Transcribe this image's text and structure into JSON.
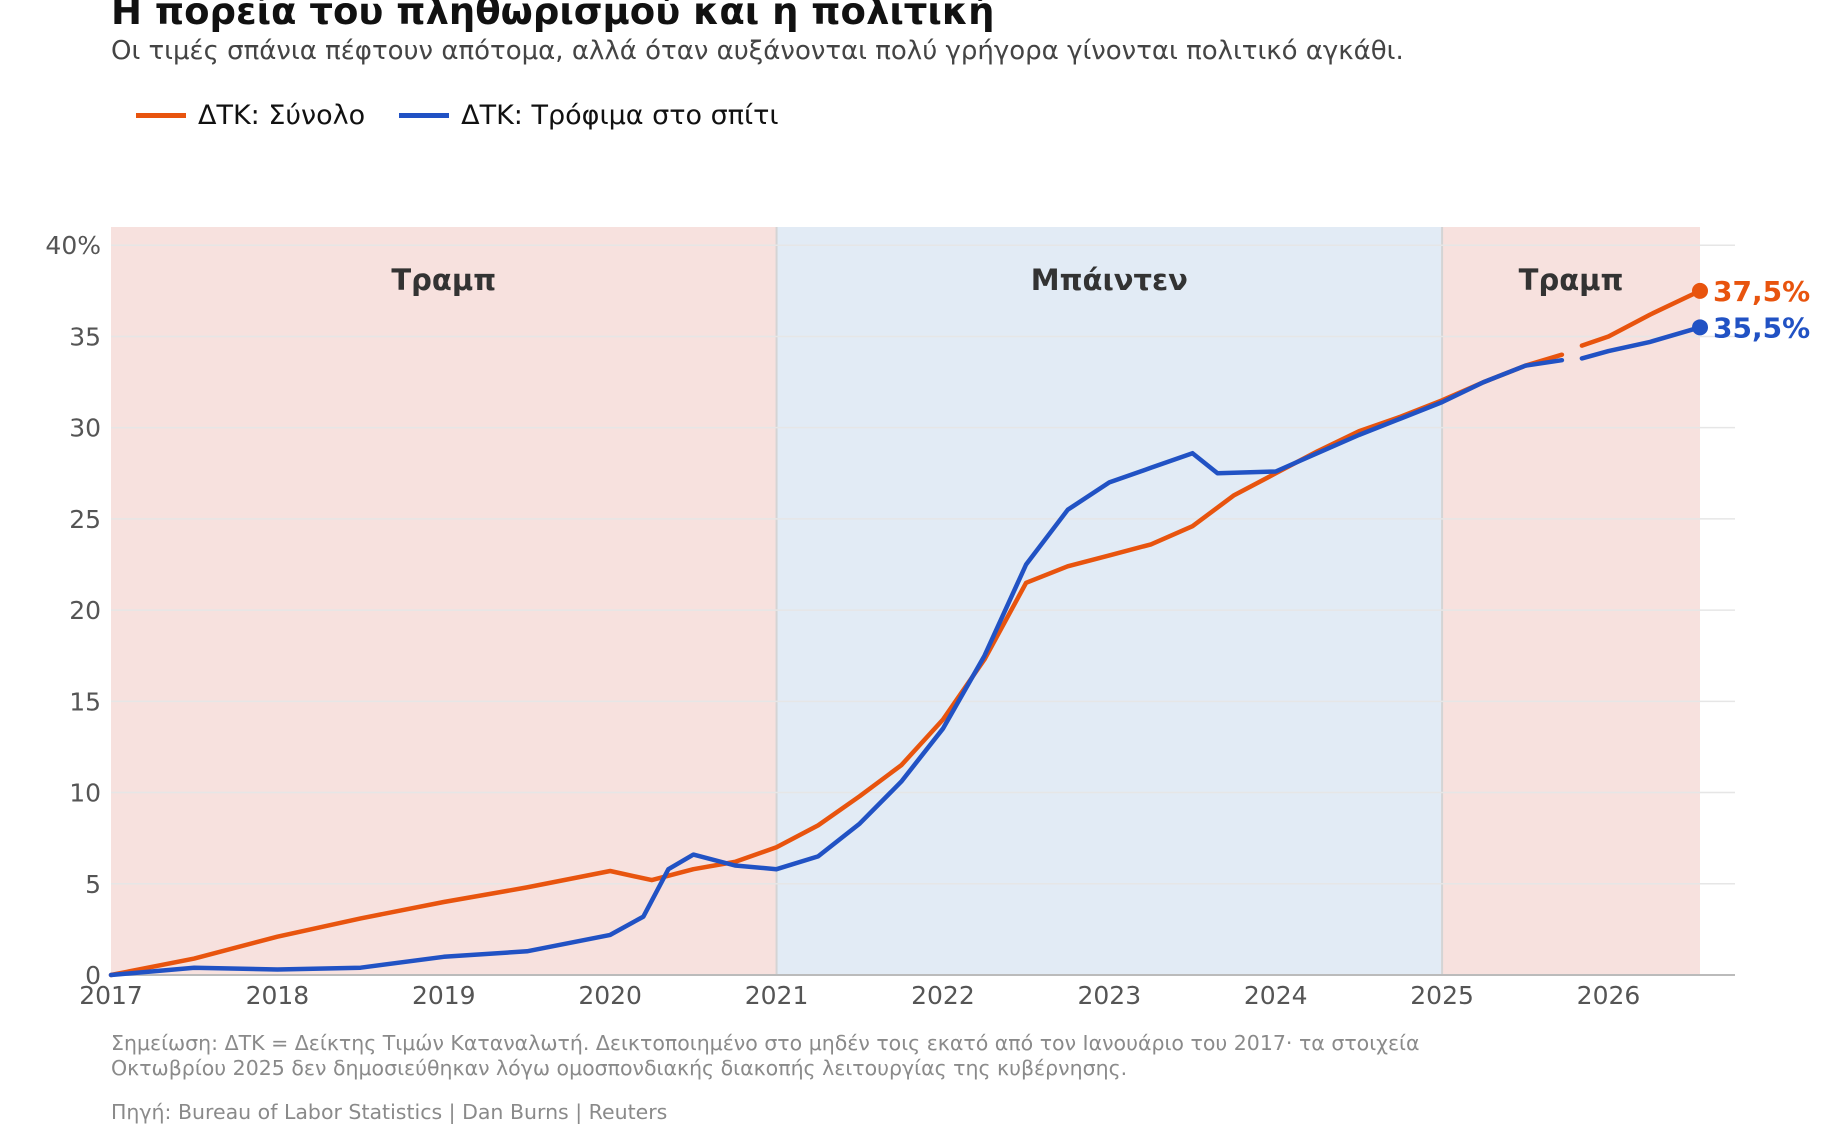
{
  "header": {
    "title": "Η πορεία του πληθωρισμού και η πολιτική",
    "subtitle": "Οι τιμές σπάνια πέφτουν απότομα, αλλά όταν αυξάνονται πολύ γρήγορα γίνονται πολιτικό αγκάθι."
  },
  "footer": {
    "note": "Σημείωση: ΔΤΚ = Δείκτης Τιμών Καταναλωτή. Δεικτοποιημένο στο μηδέν τοις εκατό από τον Ιανουάριο του 2017· τα στοιχεία Οκτωβρίου 2025 δεν δημοσιεύθηκαν λόγω ομοσπονδιακής διακοπής λειτουργίας της κυβέρνησης.",
    "source": "Πηγή: Bureau of Labor Statistics | Dan Burns | Reuters"
  },
  "chart_data": {
    "type": "line",
    "x_type": "year",
    "xlim": [
      2017,
      2026.55
    ],
    "ylim": [
      0,
      41
    ],
    "x_ticks": [
      "2017",
      "2018",
      "2019",
      "2020",
      "2021",
      "2022",
      "2023",
      "2024",
      "2025",
      "2026"
    ],
    "y_ticks": [
      "0",
      "5",
      "10",
      "15",
      "20",
      "25",
      "30",
      "35",
      "40%"
    ],
    "grid": "horizontal",
    "legend_position": "top-left",
    "gap": [
      2025.72,
      2025.84
    ],
    "periods": [
      {
        "label": "Τραμπ",
        "start": 2017,
        "end": 2021,
        "color": "#f7e1de"
      },
      {
        "label": "Μπάιντεν",
        "start": 2021,
        "end": 2025,
        "color": "#e2ebf5"
      },
      {
        "label": "Τραμπ",
        "start": 2025,
        "end": 2026.55,
        "color": "#f7e1de"
      }
    ],
    "series": [
      {
        "name": "ΔΤΚ: Σύνολο",
        "color": "#e8540e",
        "end_label": "37,5%",
        "points": [
          [
            2017.0,
            0.0
          ],
          [
            2017.5,
            0.9
          ],
          [
            2018.0,
            2.1
          ],
          [
            2018.5,
            3.1
          ],
          [
            2019.0,
            4.0
          ],
          [
            2019.5,
            4.8
          ],
          [
            2020.0,
            5.7
          ],
          [
            2020.25,
            5.2
          ],
          [
            2020.5,
            5.8
          ],
          [
            2020.75,
            6.2
          ],
          [
            2021.0,
            7.0
          ],
          [
            2021.25,
            8.2
          ],
          [
            2021.5,
            9.8
          ],
          [
            2021.75,
            11.5
          ],
          [
            2022.0,
            14.0
          ],
          [
            2022.25,
            17.3
          ],
          [
            2022.5,
            21.5
          ],
          [
            2022.75,
            22.4
          ],
          [
            2023.0,
            23.0
          ],
          [
            2023.25,
            23.6
          ],
          [
            2023.5,
            24.6
          ],
          [
            2023.75,
            26.3
          ],
          [
            2024.0,
            27.5
          ],
          [
            2024.25,
            28.7
          ],
          [
            2024.5,
            29.8
          ],
          [
            2024.75,
            30.6
          ],
          [
            2025.0,
            31.5
          ],
          [
            2025.25,
            32.5
          ],
          [
            2025.5,
            33.4
          ],
          [
            2025.72,
            34.0
          ],
          [
            2025.84,
            34.5
          ],
          [
            2026.0,
            35.0
          ],
          [
            2026.25,
            36.2
          ],
          [
            2026.55,
            37.5
          ]
        ]
      },
      {
        "name": "ΔΤΚ: Τρόφιμα στο σπίτι",
        "color": "#2152c4",
        "end_label": "35,5%",
        "points": [
          [
            2017.0,
            0.0
          ],
          [
            2017.5,
            0.4
          ],
          [
            2018.0,
            0.3
          ],
          [
            2018.5,
            0.4
          ],
          [
            2019.0,
            1.0
          ],
          [
            2019.5,
            1.3
          ],
          [
            2020.0,
            2.2
          ],
          [
            2020.2,
            3.2
          ],
          [
            2020.35,
            5.8
          ],
          [
            2020.5,
            6.6
          ],
          [
            2020.75,
            6.0
          ],
          [
            2021.0,
            5.8
          ],
          [
            2021.25,
            6.5
          ],
          [
            2021.5,
            8.3
          ],
          [
            2021.75,
            10.6
          ],
          [
            2022.0,
            13.5
          ],
          [
            2022.25,
            17.5
          ],
          [
            2022.5,
            22.5
          ],
          [
            2022.75,
            25.5
          ],
          [
            2023.0,
            27.0
          ],
          [
            2023.25,
            27.8
          ],
          [
            2023.5,
            28.6
          ],
          [
            2023.65,
            27.5
          ],
          [
            2024.0,
            27.6
          ],
          [
            2024.25,
            28.6
          ],
          [
            2024.5,
            29.6
          ],
          [
            2024.75,
            30.5
          ],
          [
            2025.0,
            31.4
          ],
          [
            2025.25,
            32.5
          ],
          [
            2025.5,
            33.4
          ],
          [
            2025.72,
            33.7
          ],
          [
            2025.84,
            33.8
          ],
          [
            2026.0,
            34.2
          ],
          [
            2026.25,
            34.7
          ],
          [
            2026.55,
            35.5
          ]
        ]
      }
    ]
  }
}
